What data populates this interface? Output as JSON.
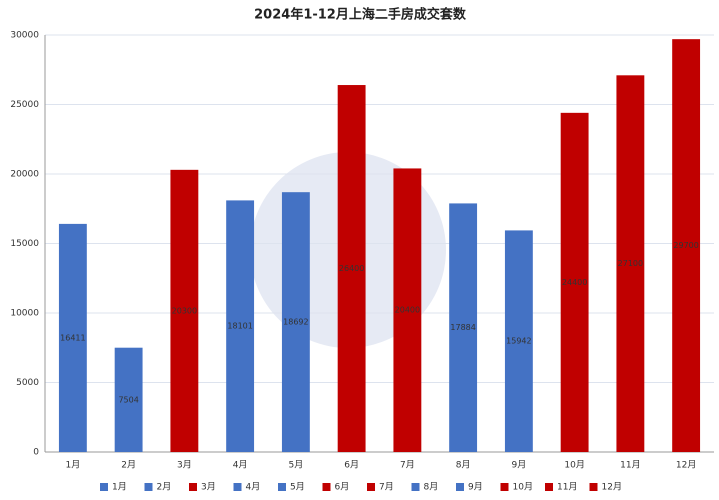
{
  "chart_data": {
    "type": "bar",
    "title": "2024年1-12月上海二手房成交套数",
    "categories": [
      "1月",
      "2月",
      "3月",
      "4月",
      "5月",
      "6月",
      "7月",
      "8月",
      "9月",
      "10月",
      "11月",
      "12月"
    ],
    "values": [
      16411,
      7504,
      20300,
      18101,
      18692,
      26400,
      20400,
      17884,
      15942,
      24400,
      27100,
      29700
    ],
    "colors": [
      "#4472c4",
      "#4472c4",
      "#c00000",
      "#4472c4",
      "#4472c4",
      "#c00000",
      "#c00000",
      "#4472c4",
      "#4472c4",
      "#c00000",
      "#c00000",
      "#c00000"
    ],
    "ylim": [
      0,
      30000
    ],
    "yticks": [
      0,
      5000,
      10000,
      15000,
      20000,
      25000,
      30000
    ],
    "grid": true,
    "legend": "bottom"
  }
}
